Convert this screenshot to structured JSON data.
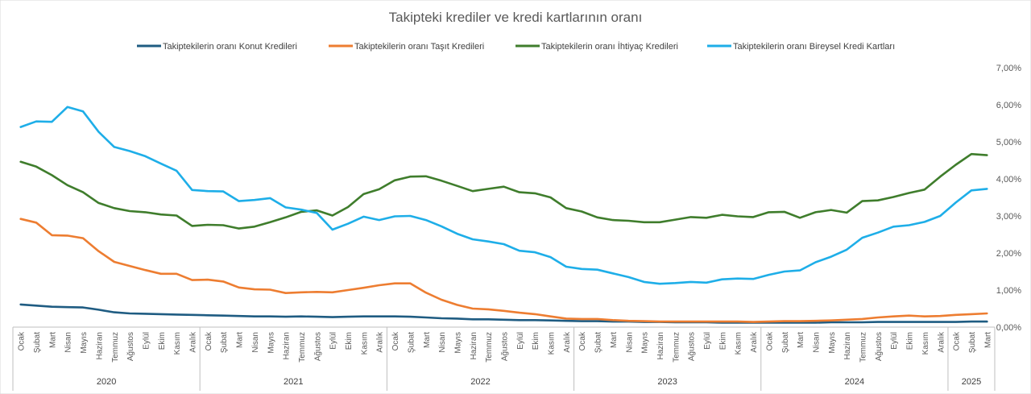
{
  "chart_data": {
    "type": "line",
    "title": "Takipteki krediler ve kredi kartlarının oranı",
    "xlabel": "",
    "ylabel": "",
    "ylim": [
      0,
      7
    ],
    "y_ticks": [
      "0,00%",
      "1,00%",
      "2,00%",
      "3,00%",
      "4,00%",
      "5,00%",
      "6,00%",
      "7,00%"
    ],
    "y_axis_side": "right",
    "grid": false,
    "legend_position": "top",
    "months": [
      "Ocak",
      "Şubat",
      "Mart",
      "Nisan",
      "Mayıs",
      "Haziran",
      "Temmuz",
      "Ağustos",
      "Eylül",
      "Ekim",
      "Kasım",
      "Aralık",
      "Ocak",
      "Şubat",
      "Mart",
      "Nisan",
      "Mayıs",
      "Haziran",
      "Temmuz",
      "Ağustos",
      "Eylül",
      "Ekim",
      "Kasım",
      "Aralık",
      "Ocak",
      "Şubat",
      "Mart",
      "Nisan",
      "Mayıs",
      "Haziran",
      "Temmuz",
      "Ağustos",
      "Eylül",
      "Ekim",
      "Kasım",
      "Aralık",
      "Ocak",
      "Şubat",
      "Mart",
      "Nisan",
      "Mayıs",
      "Haziran",
      "Temmuz",
      "Ağustos",
      "Eylül",
      "Ekim",
      "Kasım",
      "Aralık",
      "Ocak",
      "Şubat",
      "Mart",
      "Nisan",
      "Mayıs",
      "Haziran",
      "Temmuz",
      "Ağustos",
      "Eylül",
      "Ekim",
      "Kasım",
      "Aralık",
      "Ocak",
      "Şubat",
      "Mart"
    ],
    "years": [
      {
        "label": "2020",
        "count": 12
      },
      {
        "label": "2021",
        "count": 12
      },
      {
        "label": "2022",
        "count": 12
      },
      {
        "label": "2023",
        "count": 12
      },
      {
        "label": "2024",
        "count": 12
      },
      {
        "label": "2025",
        "count": 3
      }
    ],
    "series": [
      {
        "name": "Takipteki­lerin oranı Konut Kredileri",
        "color": "#1f5c82",
        "values": [
          0.61,
          0.58,
          0.55,
          0.54,
          0.53,
          0.47,
          0.4,
          0.37,
          0.36,
          0.35,
          0.34,
          0.33,
          0.32,
          0.31,
          0.3,
          0.29,
          0.29,
          0.28,
          0.29,
          0.28,
          0.27,
          0.28,
          0.29,
          0.29,
          0.29,
          0.28,
          0.26,
          0.24,
          0.23,
          0.21,
          0.21,
          0.2,
          0.19,
          0.19,
          0.18,
          0.17,
          0.16,
          0.16,
          0.15,
          0.15,
          0.14,
          0.14,
          0.13,
          0.13,
          0.13,
          0.12,
          0.12,
          0.12,
          0.12,
          0.12,
          0.12,
          0.12,
          0.13,
          0.13,
          0.13,
          0.14,
          0.14,
          0.14,
          0.14,
          0.14,
          0.14,
          0.15,
          0.15
        ]
      },
      {
        "name": "Takipteki­lerin oranı Taşıt Kredileri",
        "color": "#ed7d31",
        "values": [
          2.92,
          2.82,
          2.48,
          2.47,
          2.4,
          2.05,
          1.76,
          1.65,
          1.54,
          1.44,
          1.44,
          1.27,
          1.28,
          1.23,
          1.07,
          1.02,
          1.01,
          0.92,
          0.94,
          0.95,
          0.94,
          1.0,
          1.06,
          1.13,
          1.18,
          1.18,
          0.93,
          0.74,
          0.6,
          0.5,
          0.48,
          0.44,
          0.39,
          0.35,
          0.29,
          0.23,
          0.22,
          0.22,
          0.19,
          0.17,
          0.16,
          0.15,
          0.15,
          0.15,
          0.15,
          0.15,
          0.15,
          0.14,
          0.15,
          0.16,
          0.16,
          0.17,
          0.18,
          0.2,
          0.22,
          0.26,
          0.29,
          0.31,
          0.29,
          0.3,
          0.33,
          0.35,
          0.37
        ]
      },
      {
        "name": "Takipteki­lerin oranı İhtiyaç Kredileri",
        "color": "#3f7d2c",
        "values": [
          4.46,
          4.33,
          4.1,
          3.83,
          3.64,
          3.35,
          3.21,
          3.13,
          3.1,
          3.04,
          3.01,
          2.73,
          2.76,
          2.75,
          2.66,
          2.71,
          2.83,
          2.96,
          3.11,
          3.15,
          3.01,
          3.24,
          3.59,
          3.72,
          3.96,
          4.06,
          4.07,
          3.95,
          3.81,
          3.67,
          3.73,
          3.79,
          3.64,
          3.61,
          3.5,
          3.21,
          3.12,
          2.96,
          2.89,
          2.87,
          2.83,
          2.83,
          2.9,
          2.97,
          2.95,
          3.03,
          2.99,
          2.97,
          3.1,
          3.11,
          2.95,
          3.1,
          3.16,
          3.09,
          3.4,
          3.42,
          3.51,
          3.62,
          3.71,
          4.06,
          4.38,
          4.67,
          4.64
        ]
      },
      {
        "name": "Takipteki­lerin oranı Bireysel Kredi Kartları",
        "color": "#1eaee8",
        "values": [
          5.4,
          5.55,
          5.54,
          5.94,
          5.82,
          5.27,
          4.86,
          4.75,
          4.61,
          4.41,
          4.22,
          3.7,
          3.67,
          3.66,
          3.4,
          3.43,
          3.48,
          3.23,
          3.17,
          3.08,
          2.63,
          2.79,
          2.98,
          2.89,
          2.99,
          3.0,
          2.89,
          2.72,
          2.52,
          2.37,
          2.31,
          2.24,
          2.06,
          2.02,
          1.89,
          1.63,
          1.57,
          1.55,
          1.45,
          1.35,
          1.22,
          1.17,
          1.19,
          1.22,
          1.2,
          1.29,
          1.31,
          1.3,
          1.41,
          1.5,
          1.53,
          1.75,
          1.9,
          2.09,
          2.41,
          2.55,
          2.71,
          2.75,
          2.84,
          3.0,
          3.36,
          3.69,
          3.73
        ]
      }
    ]
  }
}
